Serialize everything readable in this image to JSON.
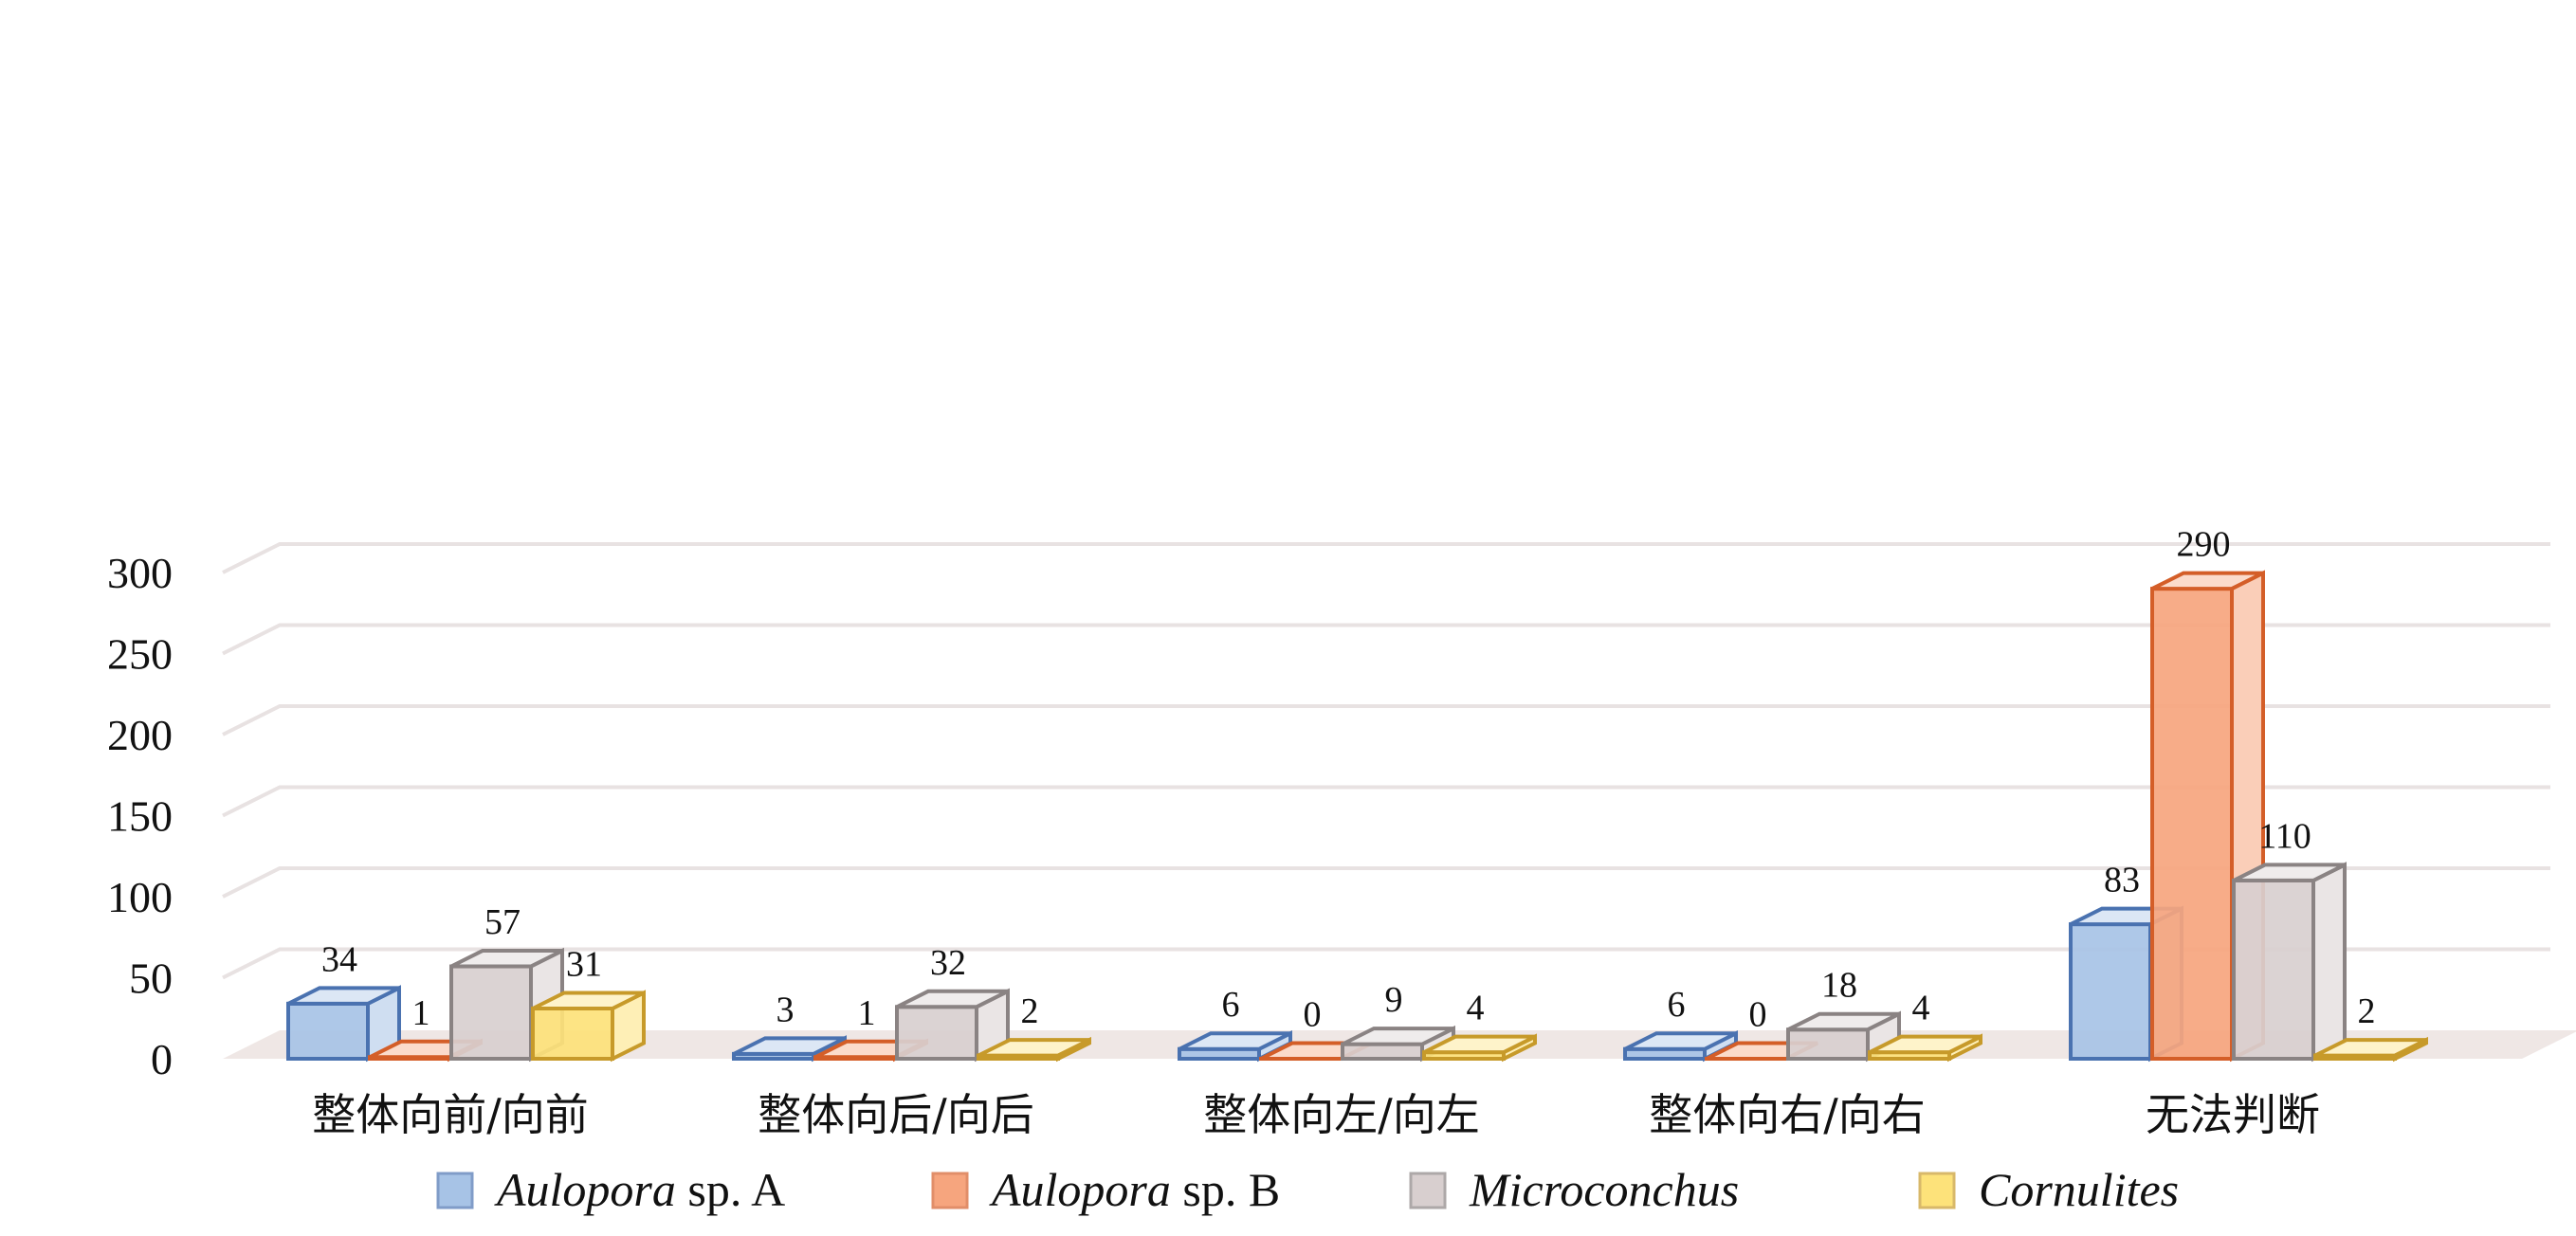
{
  "chart_data": {
    "type": "bar",
    "categories": [
      "整体向前/向前",
      "整体向后/向后",
      "整体向左/向左",
      "整体向右/向右",
      "无法判断"
    ],
    "series": [
      {
        "name": "Aulopora sp. A",
        "name_italic": "Aulopora",
        "name_rest": " sp. A",
        "color": "#a7c3e6",
        "edge": "#4a72b0",
        "values": [
          34,
          3,
          6,
          6,
          83
        ]
      },
      {
        "name": "Aulopora sp. B",
        "name_italic": "Aulopora",
        "name_rest": " sp. B",
        "color": "#f6a57e",
        "edge": "#d45e28",
        "values": [
          1,
          1,
          0,
          0,
          290
        ]
      },
      {
        "name": "Microconchus",
        "name_italic": "Microconchus",
        "name_rest": "",
        "color": "#d8cfcf",
        "edge": "#8a8383",
        "values": [
          57,
          32,
          9,
          18,
          110
        ]
      },
      {
        "name": "Cornulites",
        "name_italic": "Cornulites",
        "name_rest": "",
        "color": "#fde27a",
        "edge": "#c79a2a",
        "values": [
          31,
          2,
          4,
          4,
          2
        ]
      }
    ],
    "y_ticks": [
      "0",
      "50",
      "100",
      "150",
      "200",
      "250",
      "300"
    ],
    "ylim": [
      0,
      300
    ],
    "grid": true,
    "legend_position": "bottom",
    "title": "",
    "xlabel": "",
    "ylabel": ""
  }
}
